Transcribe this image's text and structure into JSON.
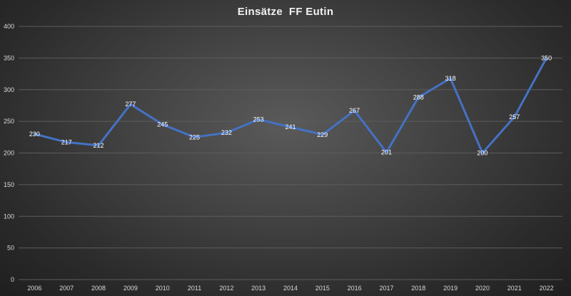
{
  "chart_data": {
    "type": "line",
    "title": "Einsätze  FF Eutin",
    "categories": [
      "2006",
      "2007",
      "2008",
      "2009",
      "2010",
      "2011",
      "2012",
      "2013",
      "2014",
      "2015",
      "2016",
      "2017",
      "2018",
      "2019",
      "2020",
      "2021",
      "2022"
    ],
    "values": [
      230,
      217,
      212,
      277,
      245,
      225,
      232,
      253,
      241,
      229,
      267,
      201,
      288,
      318,
      200,
      257,
      350
    ],
    "data_labels": [
      "230",
      "217",
      "212",
      "277",
      "245",
      "225",
      "232",
      "253",
      "241",
      "229",
      "267",
      "201",
      "288",
      "318",
      "200",
      "257",
      "350"
    ],
    "ylim": [
      0,
      400
    ],
    "yticks": [
      0,
      50,
      100,
      150,
      200,
      250,
      300,
      350,
      400
    ],
    "ytick_labels": [
      "0",
      "50",
      "100",
      "150",
      "200",
      "250",
      "300",
      "350",
      "400"
    ],
    "grid": true,
    "legend": "none",
    "colors": {
      "line": "#4472c4",
      "grid": "#5c5c5c",
      "text": "#d9d9d9",
      "title": "#f2f2f2"
    }
  }
}
